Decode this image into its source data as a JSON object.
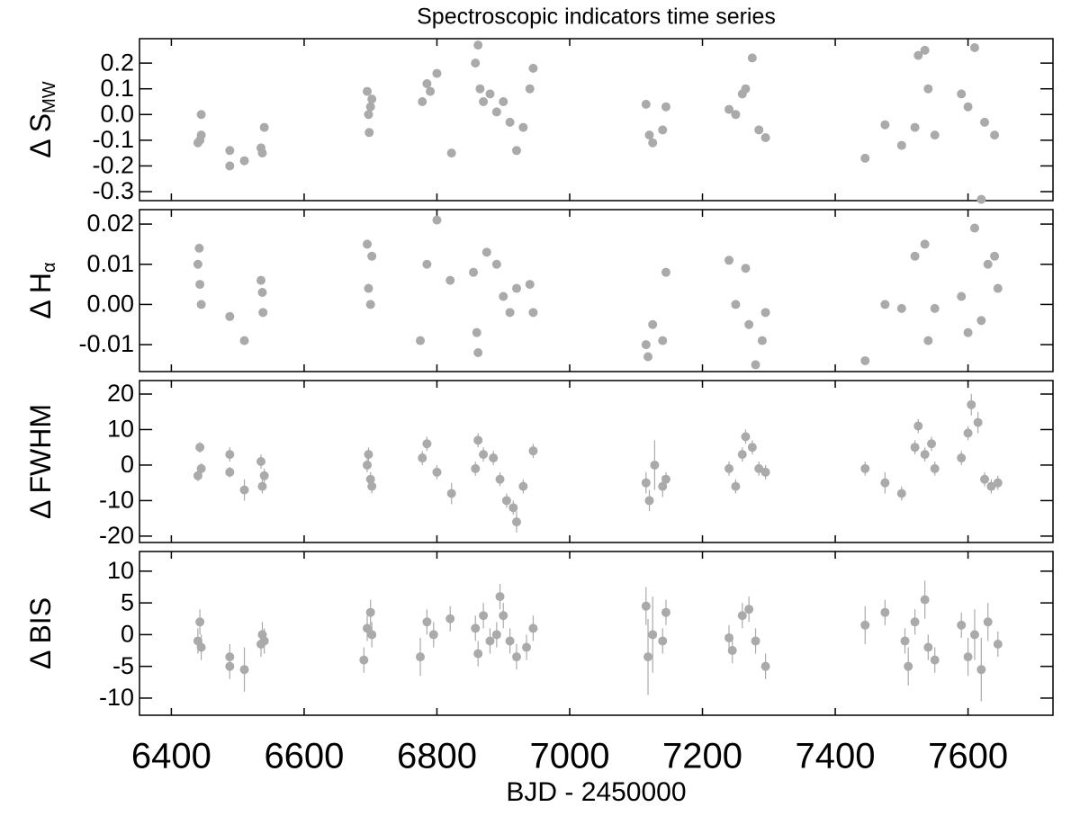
{
  "chart_data": [
    {
      "type": "scatter",
      "title": "Spectroscopic indicators time series",
      "ylabel": "Δ S",
      "ylabel_subscript": "MW",
      "color": "#aaaaaa",
      "xlim": [
        6352,
        7728
      ],
      "xticks": [
        6400,
        6600,
        6800,
        7000,
        7200,
        7400,
        7600
      ],
      "ylim": [
        -0.335,
        0.295
      ],
      "yticks": [
        0.2,
        0.1,
        {
          "value": 0,
          "label": "0.0"
        },
        -0.1,
        -0.2,
        -0.3
      ],
      "x": [
        6440,
        6443,
        6445,
        6445,
        6488,
        6488,
        6510,
        6535,
        6537,
        6540,
        6695,
        6697,
        6698,
        6700,
        6702,
        6778,
        6785,
        6790,
        6800,
        6822,
        6858,
        6862,
        6865,
        6870,
        6880,
        6890,
        6900,
        6910,
        6920,
        6930,
        6940,
        6945,
        7115,
        7120,
        7125,
        7140,
        7145,
        7240,
        7250,
        7260,
        7265,
        7275,
        7285,
        7295,
        7445,
        7475,
        7500,
        7520,
        7525,
        7535,
        7540,
        7550,
        7590,
        7600,
        7610,
        7620,
        7625,
        7640
      ],
      "values": [
        -0.11,
        -0.1,
        -0.08,
        0.0,
        -0.14,
        -0.2,
        -0.18,
        -0.13,
        -0.15,
        -0.05,
        0.09,
        0.0,
        -0.07,
        0.03,
        0.06,
        0.05,
        0.12,
        0.09,
        0.16,
        -0.15,
        0.2,
        0.27,
        0.1,
        0.05,
        0.08,
        0.01,
        0.05,
        -0.03,
        -0.14,
        -0.05,
        0.1,
        0.18,
        0.04,
        -0.08,
        -0.11,
        -0.06,
        0.03,
        0.02,
        0.0,
        0.08,
        0.1,
        0.22,
        -0.06,
        -0.09,
        -0.17,
        -0.04,
        -0.12,
        -0.05,
        0.23,
        0.25,
        0.1,
        -0.08,
        0.08,
        0.03,
        0.26,
        -0.33,
        -0.03,
        -0.08
      ]
    },
    {
      "type": "scatter",
      "ylabel": "Δ H",
      "ylabel_subscript": "α",
      "color": "#aaaaaa",
      "xlim": [
        6352,
        7728
      ],
      "xticks": [
        6400,
        6600,
        6800,
        7000,
        7200,
        7400,
        7600
      ],
      "ylim": [
        -0.0167,
        0.0236
      ],
      "yticks": [
        0.02,
        0.01,
        {
          "value": 0,
          "label": "0.00"
        },
        -0.01
      ],
      "x": [
        6440,
        6442,
        6443,
        6445,
        6488,
        6510,
        6535,
        6537,
        6538,
        6695,
        6697,
        6700,
        6702,
        6775,
        6785,
        6800,
        6820,
        6855,
        6860,
        6862,
        6875,
        6890,
        6900,
        6910,
        6920,
        6940,
        6945,
        7115,
        7118,
        7125,
        7140,
        7145,
        7240,
        7250,
        7265,
        7270,
        7280,
        7290,
        7295,
        7445,
        7475,
        7500,
        7520,
        7535,
        7540,
        7550,
        7590,
        7600,
        7610,
        7620,
        7630,
        7640,
        7645
      ],
      "values": [
        0.01,
        0.014,
        0.005,
        0.0,
        -0.003,
        -0.009,
        0.006,
        0.003,
        -0.002,
        0.015,
        0.004,
        0.0,
        0.012,
        -0.009,
        0.01,
        0.021,
        0.006,
        0.008,
        -0.007,
        -0.012,
        0.013,
        0.01,
        0.002,
        -0.002,
        0.004,
        0.005,
        -0.002,
        -0.01,
        -0.013,
        -0.005,
        -0.009,
        0.008,
        0.011,
        0.0,
        0.009,
        -0.005,
        -0.015,
        -0.009,
        -0.002,
        -0.014,
        0.0,
        -0.001,
        0.012,
        0.015,
        -0.009,
        -0.001,
        0.002,
        -0.007,
        0.019,
        -0.004,
        0.01,
        0.012,
        0.004
      ]
    },
    {
      "type": "scatter",
      "ylabel": "Δ FWHM",
      "color": "#aaaaaa",
      "xlim": [
        6352,
        7728
      ],
      "xticks": [
        6400,
        6600,
        6800,
        7000,
        7200,
        7400,
        7600
      ],
      "ylim": [
        -21.8,
        23.8
      ],
      "yticks": [
        20,
        10,
        0,
        -10,
        -20
      ],
      "x": [
        6440,
        6443,
        6445,
        6488,
        6488,
        6510,
        6535,
        6537,
        6540,
        6695,
        6697,
        6700,
        6702,
        6778,
        6785,
        6800,
        6822,
        6858,
        6862,
        6870,
        6885,
        6895,
        6905,
        6915,
        6920,
        6930,
        6945,
        7115,
        7120,
        7128,
        7140,
        7145,
        7240,
        7250,
        7260,
        7265,
        7275,
        7285,
        7295,
        7445,
        7475,
        7500,
        7520,
        7525,
        7535,
        7545,
        7550,
        7590,
        7600,
        7605,
        7615,
        7625,
        7635,
        7645
      ],
      "values": [
        -3,
        5,
        -1,
        3,
        -2,
        -7,
        1,
        -6,
        -3,
        0,
        3,
        -4,
        -6,
        2,
        6,
        -2,
        -8,
        -1,
        7,
        3,
        2,
        -4,
        -10,
        -12,
        -16,
        -6,
        4,
        -5,
        -10,
        0,
        -6,
        -4,
        -1,
        -6,
        3,
        8,
        5,
        -1,
        -2,
        -1,
        -5,
        -8,
        5,
        11,
        3,
        6,
        -1,
        2,
        9,
        17,
        12,
        -4,
        -6,
        -5
      ],
      "errors": [
        1.5,
        1.5,
        1.5,
        2,
        1.5,
        3,
        2,
        2,
        2,
        2,
        2,
        2,
        2,
        2,
        2,
        2,
        3,
        2,
        2,
        2,
        2,
        2,
        2,
        2,
        3,
        2,
        2,
        3,
        3,
        7,
        3,
        2,
        2,
        2,
        2,
        2,
        2,
        2,
        2,
        2,
        3,
        2,
        2,
        2,
        2,
        2,
        2,
        2,
        2,
        3,
        3,
        2,
        2,
        2
      ]
    },
    {
      "type": "scatter",
      "ylabel": "Δ BIS",
      "xlabel": "BJD - 2450000",
      "color": "#aaaaaa",
      "xlim": [
        6352,
        7728
      ],
      "xticks": [
        6400,
        6600,
        6800,
        7000,
        7200,
        7400,
        7600
      ],
      "ylim": [
        -12.7,
        13.1
      ],
      "yticks": [
        10,
        5,
        0,
        -5,
        -10
      ],
      "x": [
        6440,
        6443,
        6445,
        6488,
        6488,
        6510,
        6535,
        6537,
        6540,
        6690,
        6695,
        6700,
        6702,
        6775,
        6785,
        6795,
        6820,
        6858,
        6862,
        6870,
        6880,
        6890,
        6895,
        6900,
        6910,
        6920,
        6935,
        6945,
        7115,
        7118,
        7125,
        7140,
        7145,
        7240,
        7245,
        7260,
        7270,
        7280,
        7295,
        7445,
        7475,
        7505,
        7510,
        7520,
        7535,
        7540,
        7550,
        7590,
        7600,
        7610,
        7620,
        7630,
        7645
      ],
      "values": [
        -1,
        2,
        -2,
        -5,
        -3.5,
        -5.5,
        -1.5,
        0,
        -1,
        -4,
        1,
        3.5,
        0,
        -3.5,
        2,
        0,
        2.5,
        1,
        -3,
        3,
        -1,
        0,
        6,
        3,
        -1,
        -3.5,
        -2,
        1,
        4.5,
        -3.5,
        0,
        -1,
        3.5,
        -0.5,
        -2.5,
        3,
        4,
        -1,
        -5,
        1.5,
        3.5,
        -1,
        -5,
        2,
        5.5,
        -2,
        -4,
        1.5,
        -3.5,
        0,
        -5.5,
        2,
        -1.5
      ],
      "errors": [
        2,
        2,
        2,
        2,
        2,
        3.5,
        2,
        2,
        2,
        2,
        2,
        2,
        2,
        3,
        2,
        2,
        2,
        2,
        2,
        2,
        2,
        2,
        2,
        2,
        2,
        2,
        2,
        2,
        3,
        6,
        6,
        2,
        2,
        2,
        2,
        2,
        2,
        2,
        2,
        3,
        2,
        2,
        3,
        2,
        3,
        2,
        2,
        2,
        3,
        4,
        5,
        3,
        2
      ]
    }
  ]
}
